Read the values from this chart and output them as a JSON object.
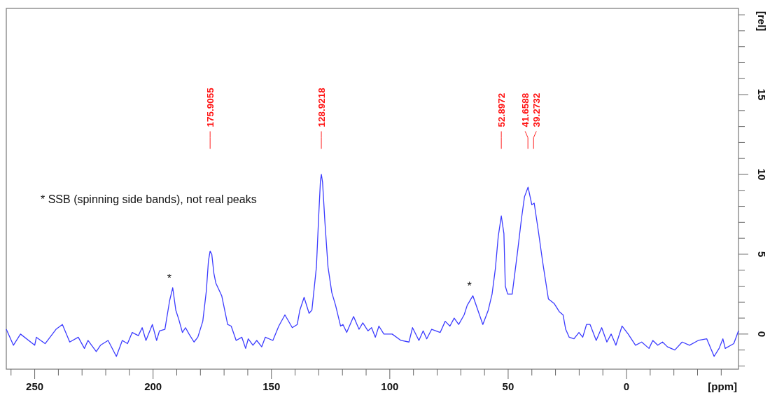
{
  "chart_data": {
    "type": "line",
    "xlabel": "[ppm]",
    "ylabel": "[rel]",
    "color": "#3c3cff",
    "xlim": [
      262,
      -47.3
    ],
    "ylim": [
      -2.2,
      20.4
    ],
    "xticks": [
      {
        "value": 260,
        "label": null
      },
      250,
      {
        "value": 240,
        "label": null
      },
      {
        "value": 230,
        "label": null
      },
      {
        "value": 220,
        "label": null
      },
      {
        "value": 210,
        "label": null
      },
      200,
      {
        "value": 190,
        "label": null
      },
      {
        "value": 180,
        "label": null
      },
      {
        "value": 170,
        "label": null
      },
      {
        "value": 160,
        "label": null
      },
      150,
      {
        "value": 140,
        "label": null
      },
      {
        "value": 130,
        "label": null
      },
      {
        "value": 120,
        "label": null
      },
      {
        "value": 110,
        "label": null
      },
      100,
      {
        "value": 90,
        "label": null
      },
      {
        "value": 80,
        "label": null
      },
      {
        "value": 70,
        "label": null
      },
      {
        "value": 60,
        "label": null
      },
      50,
      {
        "value": 40,
        "label": null
      },
      {
        "value": 30,
        "label": null
      },
      {
        "value": 20,
        "label": null
      },
      {
        "value": 10,
        "label": null
      },
      0,
      {
        "value": -10,
        "label": null
      },
      {
        "value": -20,
        "label": null
      },
      {
        "value": -30,
        "label": null
      },
      {
        "value": -40,
        "label": null
      }
    ],
    "yticks": [
      {
        "value": -2,
        "label": null
      },
      {
        "value": -1,
        "label": null
      },
      0,
      {
        "value": 1,
        "label": null
      },
      {
        "value": 2,
        "label": null
      },
      {
        "value": 3,
        "label": null
      },
      {
        "value": 4,
        "label": null
      },
      5,
      {
        "value": 6,
        "label": null
      },
      {
        "value": 7,
        "label": null
      },
      {
        "value": 8,
        "label": null
      },
      {
        "value": 9,
        "label": null
      },
      10,
      {
        "value": 11,
        "label": null
      },
      {
        "value": 12,
        "label": null
      },
      {
        "value": 13,
        "label": null
      },
      {
        "value": 14,
        "label": null
      },
      15,
      {
        "value": 16,
        "label": null
      },
      {
        "value": 17,
        "label": null
      },
      {
        "value": 18,
        "label": null
      },
      {
        "value": 19,
        "label": null
      },
      {
        "value": 20,
        "label": null
      }
    ],
    "x": [
      262,
      259,
      256,
      250,
      249.3,
      245.6,
      241,
      238.3,
      235.2,
      231.6,
      229,
      227.5,
      224,
      222.2,
      219,
      215.5,
      213,
      210.8,
      208.8,
      206.2,
      204.6,
      203,
      200.3,
      198.5,
      197.3,
      195,
      193,
      191.7,
      190.4,
      189.1,
      187.6,
      186.3,
      184.8,
      182.7,
      181.1,
      179,
      177.5,
      176.6,
      175.9,
      175.2,
      174.3,
      173.5,
      171,
      168.5,
      167,
      164.9,
      162.5,
      160.9,
      159.8,
      157.8,
      156.2,
      154.1,
      152.6,
      149.4,
      146.9,
      144.3,
      141.2,
      139.1,
      138,
      136.2,
      134.1,
      132.9,
      131,
      130,
      129.3,
      128.9,
      128.4,
      127.4,
      126.1,
      124.5,
      122.9,
      120.8,
      119.8,
      118.2,
      115.3,
      113,
      111.4,
      109.2,
      107.7,
      106.1,
      104.6,
      102.5,
      99,
      95.3,
      91.9,
      90.4,
      87.7,
      85.9,
      84.4,
      82.3,
      78.7,
      76.6,
      74.6,
      72.8,
      70.9,
      68.6,
      67.3,
      64.9,
      62.8,
      60.7,
      58.4,
      56.8,
      55.4,
      54.2,
      52.9,
      51.8,
      51.2,
      50.2,
      48.3,
      46,
      44.4,
      43.1,
      41.6,
      40,
      39,
      37.2,
      35.6,
      35.1,
      33,
      30.5,
      28.4,
      26.8,
      25.7,
      24.2,
      22.2,
      20.1,
      18.5,
      16.9,
      15.4,
      12.8,
      10.5,
      8.3,
      6.5,
      4.5,
      1.9,
      -0.7,
      -3.8,
      -6.4,
      -9.5,
      -11.1,
      -13.2,
      -15.2,
      -17.3,
      -20.4,
      -23.5,
      -26.6,
      -30.3,
      -33.9,
      -37,
      -39.1,
      -40.7,
      -41.7,
      -45.3,
      -47.3
    ],
    "values": [
      0.3,
      -0.7,
      0,
      -0.7,
      -0.2,
      -0.6,
      0.3,
      0.6,
      -0.5,
      -0.2,
      -0.9,
      -0.4,
      -1.1,
      -0.7,
      -0.4,
      -1.4,
      -0.4,
      -0.6,
      0.1,
      -0.1,
      0.4,
      -0.4,
      0.6,
      -0.4,
      0.2,
      0.3,
      2.1,
      2.9,
      1.5,
      0.9,
      0.1,
      0.4,
      0,
      -0.5,
      -0.2,
      0.8,
      2.7,
      4.6,
      5.2,
      5.0,
      3.8,
      3.2,
      2.4,
      0.6,
      0.5,
      -0.4,
      -0.2,
      -0.9,
      -0.3,
      -0.7,
      -0.4,
      -0.8,
      -0.2,
      -0.4,
      0.5,
      1.2,
      0.4,
      0.6,
      1.5,
      2.3,
      1.3,
      1.5,
      4.2,
      7.5,
      9.6,
      10.0,
      9.5,
      7.0,
      4.2,
      2.6,
      1.8,
      0.5,
      0.6,
      0.1,
      1.1,
      0.3,
      0.7,
      0.2,
      0.4,
      -0.2,
      0.5,
      0,
      0,
      -0.4,
      -0.5,
      0.4,
      -0.4,
      0.2,
      -0.3,
      0.3,
      0.1,
      0.8,
      0.5,
      1.0,
      0.6,
      1.2,
      1.8,
      2.4,
      1.5,
      0.6,
      1.5,
      2.5,
      4.1,
      6.1,
      7.4,
      6.3,
      3.0,
      2.5,
      2.5,
      5.2,
      7.2,
      8.6,
      9.2,
      8.1,
      8.2,
      6.4,
      4.7,
      4.2,
      2.2,
      1.9,
      1.4,
      1.2,
      0.3,
      -0.2,
      -0.3,
      0.1,
      -0.2,
      0.6,
      0.6,
      -0.4,
      0.4,
      -0.5,
      0,
      -0.7,
      0.5,
      0,
      -0.7,
      -0.5,
      -0.9,
      -0.4,
      -0.7,
      -0.5,
      -0.8,
      -1.0,
      -0.5,
      -0.7,
      -0.4,
      -0.3,
      -1.4,
      -0.9,
      -0.3,
      -0.9,
      -0.6,
      0.2
    ],
    "annotations": [
      {
        "text": "175.9055",
        "x": 175.9055
      },
      {
        "text": "128.9218",
        "x": 128.9218
      },
      {
        "text": "52.8972",
        "x": 52.8972
      },
      {
        "text": "41.6588",
        "x": 41.6588
      },
      {
        "text": "39.2732",
        "x": 39.2732
      },
      {
        "text": "*",
        "x": 191.7,
        "y": 2.9
      },
      {
        "text": "*",
        "x": 64.9,
        "y": 2.4
      },
      "* SSB (spinning side bands), not real peaks"
    ]
  }
}
